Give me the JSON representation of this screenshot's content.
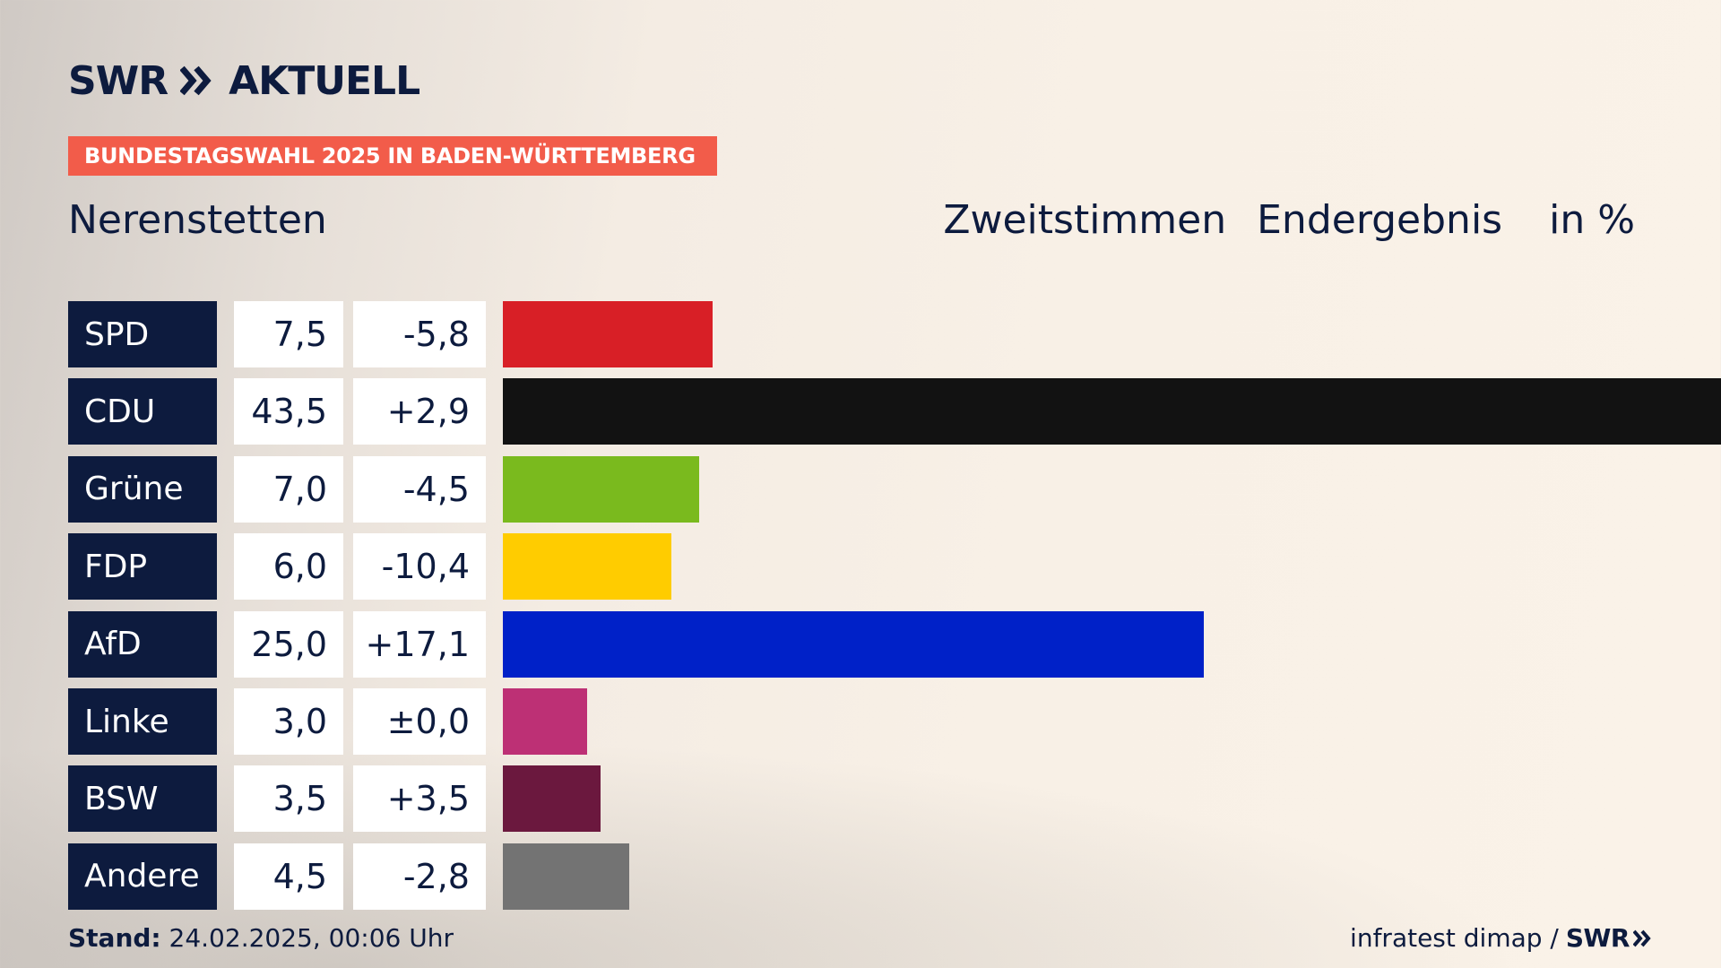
{
  "brand": {
    "logo_text": "SWR",
    "logo_sub": "AKTUELL"
  },
  "banner": "BUNDESTAGSWAHL 2025 IN BADEN-WÜRTTEMBERG",
  "place": "Nerenstetten",
  "header": {
    "vote_type": "Zweitstimmen",
    "result_type": "Endergebnis",
    "unit": "in %"
  },
  "footer": {
    "stand_label": "Stand:",
    "stand_value": "24.02.2025, 00:06 Uhr",
    "source": "infratest dimap /",
    "source_brand": "SWR"
  },
  "chart_data": {
    "type": "bar",
    "orientation": "horizontal",
    "categories": [
      "SPD",
      "CDU",
      "Grüne",
      "FDP",
      "AfD",
      "Linke",
      "BSW",
      "Andere"
    ],
    "values": [
      7.5,
      43.5,
      7.0,
      6.0,
      25.0,
      3.0,
      3.5,
      4.5
    ],
    "value_labels": [
      "7,5",
      "43,5",
      "7,0",
      "6,0",
      "25,0",
      "3,0",
      "3,5",
      "4,5"
    ],
    "diff_labels": [
      "-5,8",
      "+2,9",
      "-4,5",
      "-10,4",
      "+17,1",
      "±0,0",
      "+3,5",
      "-2,8"
    ],
    "colors": [
      "#d81f26",
      "#121212",
      "#7aba1e",
      "#ffcc00",
      "#0021c8",
      "#bd3075",
      "#6b183e",
      "#737373"
    ],
    "xlim": [
      0,
      43.5
    ],
    "grid": false,
    "legend": "none"
  }
}
